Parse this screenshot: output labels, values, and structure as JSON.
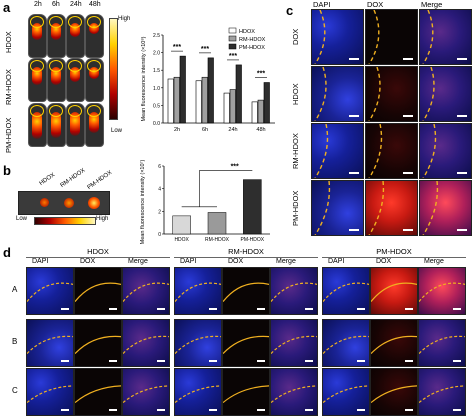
{
  "panels": {
    "a": "a",
    "b": "b",
    "c": "c",
    "d": "d"
  },
  "panel_a": {
    "timepoints": [
      "2h",
      "6h",
      "24h",
      "48h"
    ],
    "rows": [
      "HDOX",
      "RM-HDOX",
      "PM-HDOX"
    ],
    "colorbar_high": "High",
    "colorbar_low": "Low"
  },
  "panel_b": {
    "labels": [
      "HDOX",
      "RM-HDOX",
      "PM-HDOX"
    ],
    "bar_low": "Low",
    "bar_high": "High"
  },
  "panel_c": {
    "cols": [
      "DAPI",
      "DOX",
      "Merge"
    ],
    "rows": [
      "DOX",
      "HDOX",
      "RM-HDOX",
      "PM-HDOX"
    ]
  },
  "panel_d": {
    "groups": [
      "HDOX",
      "RM-HDOX",
      "PM-HDOX"
    ],
    "cols": [
      "DAPI",
      "DOX",
      "Merge"
    ],
    "rows": [
      "A",
      "B",
      "C"
    ]
  },
  "chart_data": [
    {
      "type": "bar",
      "ylabel": "Mean fluorescence intensity (×10⁸)",
      "categories": [
        "2h",
        "6h",
        "24h",
        "48h"
      ],
      "yticks": [
        "0.0",
        "0.5",
        "1.0",
        "1.5",
        "2.0",
        "2.5"
      ],
      "ylim": [
        0,
        2.5
      ],
      "series": [
        {
          "name": "HDOX",
          "values": [
            1.25,
            1.2,
            0.85,
            0.6
          ],
          "color": "#ffffff"
        },
        {
          "name": "RM-HDOX",
          "values": [
            1.3,
            1.3,
            0.95,
            0.65
          ],
          "color": "#a0a0a0"
        },
        {
          "name": "PM-HDOX",
          "values": [
            1.9,
            1.85,
            1.65,
            1.15
          ],
          "color": "#2e2e2e"
        }
      ],
      "significance": [
        "***",
        "***",
        "***",
        "***"
      ],
      "legend": "top-right"
    },
    {
      "type": "bar",
      "ylabel": "Mean fluorescence intensity (×10⁷)",
      "categories": [
        "HDOX",
        "RM-HDOX",
        "PM-HDOX"
      ],
      "yticks": [
        "0",
        "2",
        "4",
        "6"
      ],
      "ylim": [
        0,
        6
      ],
      "values": [
        1.6,
        1.9,
        4.8
      ],
      "colors": [
        "#d8d8d8",
        "#9a9a9a",
        "#2e2e2e"
      ],
      "significance": "***"
    }
  ]
}
